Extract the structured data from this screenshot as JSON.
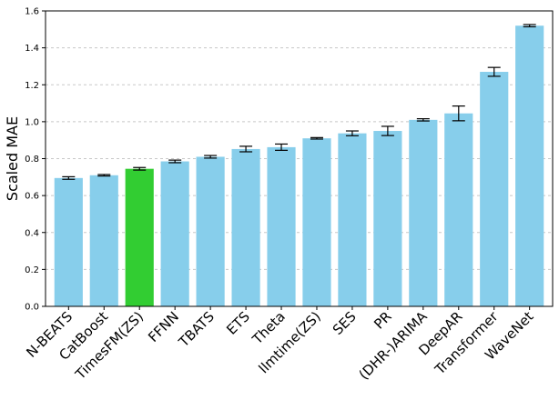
{
  "chart_data": {
    "type": "bar",
    "title": "",
    "xlabel": "",
    "ylabel": "Scaled MAE",
    "ylim": [
      0,
      1.6
    ],
    "yticks": [
      "0.0",
      "0.2",
      "0.4",
      "0.6",
      "0.8",
      "1.0",
      "1.2",
      "1.4",
      "1.6"
    ],
    "grid": "horizontal-dashed",
    "categories": [
      "N-BEATS",
      "CatBoost",
      "TimesFM(ZS)",
      "FFNN",
      "TBATS",
      "ETS",
      "Theta",
      "llmtime(ZS)",
      "SES",
      "PR",
      "(DHR-)ARIMA",
      "DeepAR",
      "Transformer",
      "WaveNet"
    ],
    "values": [
      0.695,
      0.71,
      0.745,
      0.785,
      0.81,
      0.852,
      0.862,
      0.91,
      0.937,
      0.95,
      1.01,
      1.045,
      1.27,
      1.52
    ],
    "errors": [
      0.007,
      0.004,
      0.007,
      0.007,
      0.007,
      0.015,
      0.017,
      0.004,
      0.013,
      0.025,
      0.006,
      0.04,
      0.024,
      0.006
    ],
    "colors": {
      "default": "#87ceeb",
      "highlight": "#32cd32",
      "error_bar": "#000000",
      "grid": "#c8c8c8"
    },
    "highlight_index": 2
  }
}
